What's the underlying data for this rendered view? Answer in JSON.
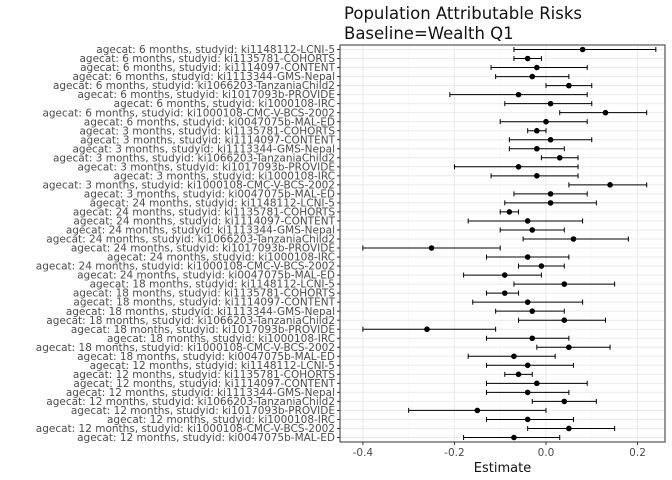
{
  "chart_data": {
    "type": "forest",
    "title": "Population Attributable Risks",
    "subtitle": "Baseline=Wealth Q1",
    "xlabel": "Estimate",
    "ylabel": "",
    "xlim": [
      -0.45,
      0.26
    ],
    "xticks": [
      -0.4,
      -0.2,
      0.0,
      0.2
    ],
    "xtick_labels": [
      "-0.4",
      "-0.2",
      "0.0",
      "0.2"
    ],
    "grid": true,
    "rows": [
      {
        "label": "agecat: 6 months, studyid: ki1148112-LCNI-5",
        "est": 0.08,
        "lo": -0.07,
        "hi": 0.24
      },
      {
        "label": "agecat: 6 months, studyid: ki1135781-COHORTS",
        "est": -0.04,
        "lo": -0.07,
        "hi": -0.01
      },
      {
        "label": "agecat: 6 months, studyid: ki1114097-CONTENT",
        "est": -0.02,
        "lo": -0.12,
        "hi": 0.09
      },
      {
        "label": "agecat: 6 months, studyid: ki1113344-GMS-Nepal",
        "est": -0.03,
        "lo": -0.11,
        "hi": 0.05
      },
      {
        "label": "agecat: 6 months, studyid: ki1066203-TanzaniaChild2",
        "est": 0.05,
        "lo": 0.0,
        "hi": 0.1
      },
      {
        "label": "agecat: 6 months, studyid: ki1017093b-PROVIDE",
        "est": -0.06,
        "lo": -0.21,
        "hi": 0.09
      },
      {
        "label": "agecat: 6 months, studyid: ki1000108-IRC",
        "est": 0.01,
        "lo": -0.09,
        "hi": 0.1
      },
      {
        "label": "agecat: 6 months, studyid: ki1000108-CMC-V-BCS-2002",
        "est": 0.13,
        "lo": 0.03,
        "hi": 0.22
      },
      {
        "label": "agecat: 6 months, studyid: ki0047075b-MAL-ED",
        "est": 0.0,
        "lo": -0.1,
        "hi": 0.09
      },
      {
        "label": "agecat: 3 months, studyid: ki1135781-COHORTS",
        "est": -0.02,
        "lo": -0.04,
        "hi": 0.0
      },
      {
        "label": "agecat: 3 months, studyid: ki1114097-CONTENT",
        "est": 0.01,
        "lo": -0.08,
        "hi": 0.1
      },
      {
        "label": "agecat: 3 months, studyid: ki1113344-GMS-Nepal",
        "est": -0.02,
        "lo": -0.08,
        "hi": 0.04
      },
      {
        "label": "agecat: 3 months, studyid: ki1066203-TanzaniaChild2",
        "est": 0.03,
        "lo": -0.01,
        "hi": 0.07
      },
      {
        "label": "agecat: 3 months, studyid: ki1017093b-PROVIDE",
        "est": -0.06,
        "lo": -0.2,
        "hi": 0.07
      },
      {
        "label": "agecat: 3 months, studyid: ki1000108-IRC",
        "est": -0.02,
        "lo": -0.12,
        "hi": 0.07
      },
      {
        "label": "agecat: 3 months, studyid: ki1000108-CMC-V-BCS-2002",
        "est": 0.14,
        "lo": 0.05,
        "hi": 0.22
      },
      {
        "label": "agecat: 3 months, studyid: ki0047075b-MAL-ED",
        "est": 0.01,
        "lo": -0.07,
        "hi": 0.09
      },
      {
        "label": "agecat: 24 months, studyid: ki1148112-LCNI-5",
        "est": 0.01,
        "lo": -0.09,
        "hi": 0.11
      },
      {
        "label": "agecat: 24 months, studyid: ki1135781-COHORTS",
        "est": -0.08,
        "lo": -0.1,
        "hi": -0.06
      },
      {
        "label": "agecat: 24 months, studyid: ki1114097-CONTENT",
        "est": -0.04,
        "lo": -0.17,
        "hi": 0.08
      },
      {
        "label": "agecat: 24 months, studyid: ki1113344-GMS-Nepal",
        "est": -0.03,
        "lo": -0.1,
        "hi": 0.04
      },
      {
        "label": "agecat: 24 months, studyid: ki1066203-TanzaniaChild2",
        "est": 0.06,
        "lo": -0.05,
        "hi": 0.18
      },
      {
        "label": "agecat: 24 months, studyid: ki1017093b-PROVIDE",
        "est": -0.25,
        "lo": -0.4,
        "hi": -0.1
      },
      {
        "label": "agecat: 24 months, studyid: ki1000108-IRC",
        "est": -0.04,
        "lo": -0.13,
        "hi": 0.05
      },
      {
        "label": "agecat: 24 months, studyid: ki1000108-CMC-V-BCS-2002",
        "est": -0.01,
        "lo": -0.06,
        "hi": 0.04
      },
      {
        "label": "agecat: 24 months, studyid: ki0047075b-MAL-ED",
        "est": -0.09,
        "lo": -0.18,
        "hi": -0.01
      },
      {
        "label": "agecat: 18 months, studyid: ki1148112-LCNI-5",
        "est": 0.04,
        "lo": -0.07,
        "hi": 0.15
      },
      {
        "label": "agecat: 18 months, studyid: ki1135781-COHORTS",
        "est": -0.09,
        "lo": -0.13,
        "hi": -0.06
      },
      {
        "label": "agecat: 18 months, studyid: ki1114097-CONTENT",
        "est": -0.04,
        "lo": -0.16,
        "hi": 0.08
      },
      {
        "label": "agecat: 18 months, studyid: ki1113344-GMS-Nepal",
        "est": -0.03,
        "lo": -0.11,
        "hi": 0.04
      },
      {
        "label": "agecat: 18 months, studyid: ki1066203-TanzaniaChild2",
        "est": 0.04,
        "lo": -0.06,
        "hi": 0.13
      },
      {
        "label": "agecat: 18 months, studyid: ki1017093b-PROVIDE",
        "est": -0.26,
        "lo": -0.4,
        "hi": -0.11
      },
      {
        "label": "agecat: 18 months, studyid: ki1000108-IRC",
        "est": -0.03,
        "lo": -0.13,
        "hi": 0.05
      },
      {
        "label": "agecat: 18 months, studyid: ki1000108-CMC-V-BCS-2002",
        "est": 0.05,
        "lo": -0.02,
        "hi": 0.14
      },
      {
        "label": "agecat: 18 months, studyid: ki0047075b-MAL-ED",
        "est": -0.07,
        "lo": -0.17,
        "hi": 0.02
      },
      {
        "label": "agecat: 12 months, studyid: ki1148112-LCNI-5",
        "est": -0.04,
        "lo": -0.13,
        "hi": 0.06
      },
      {
        "label": "agecat: 12 months, studyid: ki1135781-COHORTS",
        "est": -0.06,
        "lo": -0.09,
        "hi": -0.03
      },
      {
        "label": "agecat: 12 months, studyid: ki1114097-CONTENT",
        "est": -0.02,
        "lo": -0.13,
        "hi": 0.09
      },
      {
        "label": "agecat: 12 months, studyid: ki1113344-GMS-Nepal",
        "est": -0.04,
        "lo": -0.13,
        "hi": 0.05
      },
      {
        "label": "agecat: 12 months, studyid: ki1066203-TanzaniaChild2",
        "est": 0.04,
        "lo": -0.03,
        "hi": 0.11
      },
      {
        "label": "agecat: 12 months, studyid: ki1017093b-PROVIDE",
        "est": -0.15,
        "lo": -0.3,
        "hi": 0.0
      },
      {
        "label": "agecat: 12 months, studyid: ki1000108-IRC",
        "est": -0.04,
        "lo": -0.13,
        "hi": 0.06
      },
      {
        "label": "agecat: 12 months, studyid: ki1000108-CMC-V-BCS-2002",
        "est": 0.05,
        "lo": -0.04,
        "hi": 0.15
      },
      {
        "label": "agecat: 12 months, studyid: ki0047075b-MAL-ED",
        "est": -0.07,
        "lo": -0.18,
        "hi": 0.03
      }
    ],
    "colors": {
      "panel_bg": "#ffffff",
      "grid_major": "#ebebeb",
      "grid_minor": "#f5f5f5",
      "border": "#333333",
      "point": "#000000",
      "text": "#4d4d4d"
    }
  }
}
